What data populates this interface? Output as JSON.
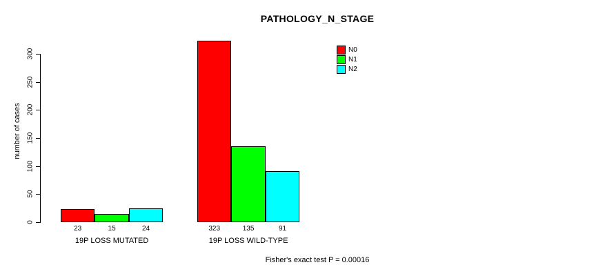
{
  "chart_data": {
    "type": "bar",
    "title": "PATHOLOGY_N_STAGE",
    "ylabel": "number of cases",
    "xlabel": "",
    "ylim": [
      0,
      300
    ],
    "yticks": [
      0,
      50,
      100,
      150,
      200,
      250,
      300
    ],
    "grid": false,
    "legend_position": "top-right",
    "categories": [
      "19P LOSS MUTATED",
      "19P LOSS WILD-TYPE"
    ],
    "series": [
      {
        "name": "N0",
        "color": "#ff0000",
        "values": [
          23,
          323
        ]
      },
      {
        "name": "N1",
        "color": "#00ff00",
        "values": [
          15,
          135
        ]
      },
      {
        "name": "N2",
        "color": "#00ffff",
        "values": [
          24,
          91
        ]
      }
    ],
    "bar_value_labels": [
      [
        "23",
        "15",
        "24"
      ],
      [
        "323",
        "135",
        "91"
      ]
    ],
    "annotation": "Fisher's exact test P = 0.00016",
    "colors": {
      "background": "#ffffff",
      "axis": "#000000",
      "text": "#000000"
    }
  }
}
